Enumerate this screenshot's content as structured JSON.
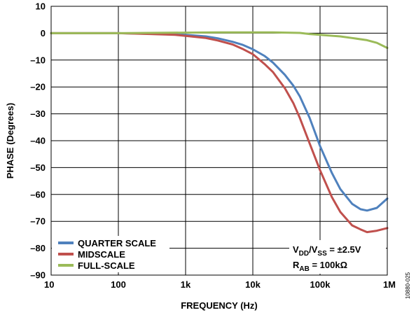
{
  "chart_data": {
    "type": "line",
    "title": "",
    "xlabel": "FREQUENCY (Hz)",
    "ylabel": "PHASE (Degrees)",
    "x_scale": "log",
    "xlim": [
      10,
      1000000
    ],
    "ylim": [
      -90,
      10
    ],
    "x_ticks": [
      10,
      100,
      1000,
      10000,
      100000,
      1000000
    ],
    "x_tick_labels": [
      "10",
      "100",
      "1k",
      "10k",
      "100k",
      "1M"
    ],
    "y_ticks": [
      10,
      0,
      -10,
      -20,
      -30,
      -40,
      -50,
      -60,
      -70,
      -80,
      -90
    ],
    "y_tick_labels": [
      "10",
      "0",
      "–10",
      "–20",
      "–30",
      "–40",
      "–50",
      "–60",
      "–70",
      "–80",
      "–90"
    ],
    "grid": true,
    "legend_position": "bottom-left",
    "series": [
      {
        "name": "QUARTER SCALE",
        "color": "#4f81bd",
        "x": [
          10,
          100,
          300,
          700,
          1000,
          2000,
          3000,
          5000,
          7000,
          10000,
          15000,
          20000,
          30000,
          40000,
          50000,
          70000,
          100000,
          150000,
          200000,
          300000,
          400000,
          500000,
          700000,
          1000000
        ],
        "y": [
          0,
          0,
          -0.2,
          -0.4,
          -0.6,
          -1.2,
          -1.9,
          -3.2,
          -4.3,
          -6.0,
          -8.5,
          -11.0,
          -15.5,
          -19.5,
          -23.5,
          -31.5,
          -42.0,
          -52.0,
          -58.0,
          -63.5,
          -65.5,
          -66.0,
          -65.0,
          -61.5
        ]
      },
      {
        "name": "MIDSCALE",
        "color": "#c0504d",
        "x": [
          10,
          100,
          300,
          700,
          1000,
          2000,
          3000,
          5000,
          7000,
          10000,
          15000,
          20000,
          30000,
          40000,
          50000,
          70000,
          100000,
          150000,
          200000,
          300000,
          400000,
          500000,
          700000,
          1000000
        ],
        "y": [
          0,
          0,
          -0.3,
          -0.6,
          -1.0,
          -1.8,
          -2.7,
          -4.2,
          -5.8,
          -7.8,
          -11.5,
          -14.5,
          -20.5,
          -26.0,
          -31.5,
          -41.0,
          -51.0,
          -61.0,
          -66.5,
          -71.5,
          -73.0,
          -74.0,
          -73.5,
          -72.5
        ]
      },
      {
        "name": "FULL-SCALE",
        "color": "#9bbb59",
        "x": [
          10,
          100,
          1000,
          3000,
          10000,
          20000,
          50000,
          70000,
          100000,
          200000,
          300000,
          500000,
          700000,
          1000000
        ],
        "y": [
          0,
          0,
          0.2,
          0.3,
          0.3,
          0.3,
          0.1,
          -0.3,
          -0.6,
          -1.2,
          -1.8,
          -2.6,
          -3.6,
          -5.5
        ]
      }
    ],
    "annotations": [
      {
        "id": "supply",
        "base1": "V",
        "sub1": "DD",
        "mid": "/V",
        "sub2": "SS",
        "tail": " = ±2.5V"
      },
      {
        "id": "rab",
        "base1": "R",
        "sub1": "AB",
        "tail": " = 100kΩ"
      }
    ],
    "figure_id": "10880-025"
  }
}
